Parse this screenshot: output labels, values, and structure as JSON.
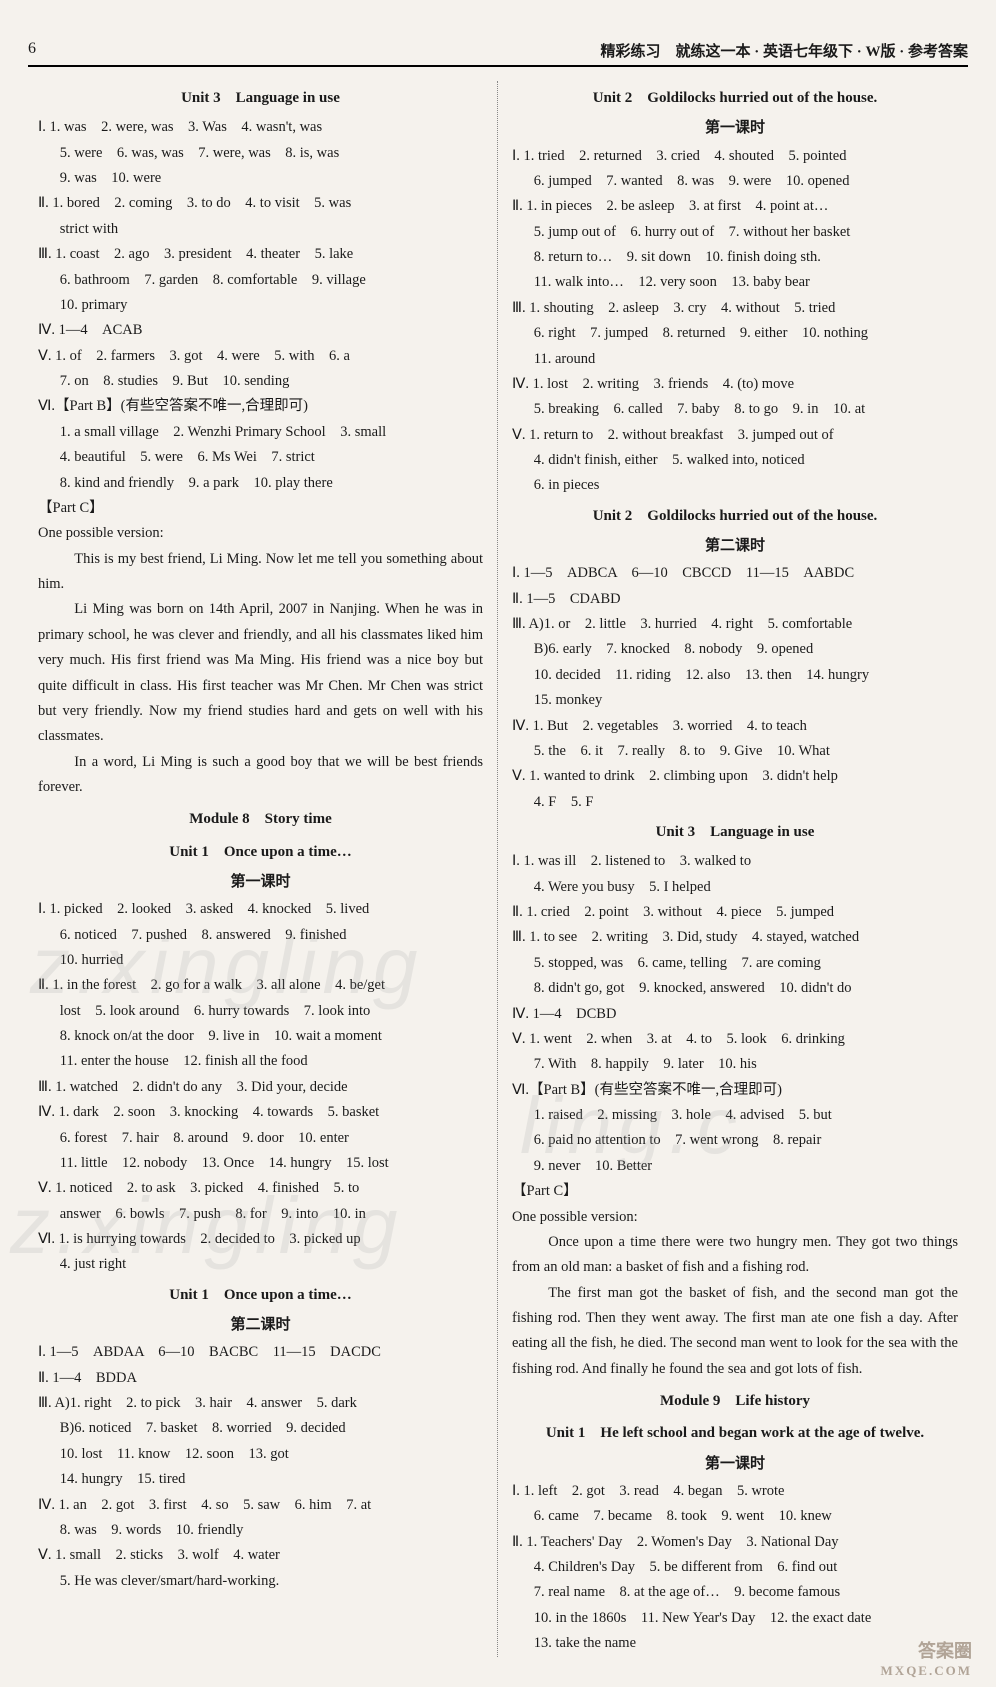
{
  "header": {
    "page_number": "6",
    "book_title": "精彩练习　就练这一本 · 英语七年级下 · W版 · 参考答案"
  },
  "left": {
    "unit3_title": "Unit 3　Language in use",
    "u3_I": "Ⅰ. 1. was　2. were, was　3. Was　4. wasn't, was",
    "u3_I_b": "5. were　6. was, was　7. were, was　8. is, was",
    "u3_I_c": "9. was　10. were",
    "u3_II": "Ⅱ. 1. bored　2. coming　3. to do　4. to visit　5. was",
    "u3_II_b": "strict with",
    "u3_III": "Ⅲ. 1. coast　2. ago　3. president　4. theater　5. lake",
    "u3_III_b": "6. bathroom　7. garden　8. comfortable　9. village",
    "u3_III_c": "10. primary",
    "u3_IV": "Ⅳ. 1—4　ACAB",
    "u3_V": "Ⅴ. 1. of　2. farmers　3. got　4. were　5. with　6. a",
    "u3_V_b": "7. on　8. studies　9. But　10. sending",
    "u3_VI": "Ⅵ.【Part B】(有些空答案不唯一,合理即可)",
    "u3_VI_1": "1. a small village　2. Wenzhi Primary School　3. small",
    "u3_VI_2": "4. beautiful　5. were　6. Ms Wei　7. strict",
    "u3_VI_3": "8. kind and friendly　9. a park　10. play there",
    "partC": "【Part C】",
    "partC_intro": "One possible version:",
    "partC_p1": "This is my best friend, Li Ming. Now let me tell you something about him.",
    "partC_p2": "Li Ming was born on 14th April, 2007 in Nanjing. When he was in primary school, he was clever and friendly, and all his classmates liked him very much. His first friend was Ma Ming. His friend was a nice boy but quite difficult in class. His first teacher was Mr Chen. Mr Chen was strict but very friendly. Now my friend studies hard and gets on well with his classmates.",
    "partC_p3": "In a word, Li Ming is such a good boy that we will be best friends forever.",
    "module8": "Module 8　Story time",
    "m8_unit1": "Unit 1　Once upon a time…",
    "m8_lesson1": "第一课时",
    "m8_I": "Ⅰ. 1. picked　2. looked　3. asked　4. knocked　5. lived",
    "m8_I_b": "6. noticed　7. pushed　8. answered　9. finished",
    "m8_I_c": "10. hurried",
    "m8_II": "Ⅱ. 1. in the forest　2. go for a walk　3. all alone　4. be/get",
    "m8_II_b": "lost　5. look around　6. hurry towards　7. look into",
    "m8_II_c": "8. knock on/at the door　9. live in　10. wait a moment",
    "m8_II_d": "11. enter the house　12. finish all the food",
    "m8_III": "Ⅲ. 1. watched　2. didn't do any　3. Did your, decide",
    "m8_IV": "Ⅳ. 1. dark　2. soon　3. knocking　4. towards　5. basket",
    "m8_IV_b": "6. forest　7. hair　8. around　9. door　10. enter",
    "m8_IV_c": "11. little　12. nobody　13. Once　14. hungry　15. lost",
    "m8_V": "Ⅴ. 1. noticed　2. to ask　3. picked　4. finished　5. to",
    "m8_V_b": "answer　6. bowls　7. push　8. for　9. into　10. in",
    "m8_VI": "Ⅵ. 1. is hurrying towards　2. decided to　3. picked up",
    "m8_VI_b": "4. just right",
    "m8_unit1_2": "Unit 1　Once upon a time…",
    "m8_lesson2": "第二课时",
    "m8l2_I": "Ⅰ. 1—5　ABDAA　6—10　BACBC　11—15　DACDC",
    "m8l2_II": "Ⅱ. 1—4　BDDA",
    "m8l2_III": "Ⅲ. A)1. right　2. to pick　3. hair　4. answer　5. dark",
    "m8l2_III_b": "B)6. noticed　7. basket　8. worried　9. decided",
    "m8l2_III_c": "10. lost　11. know　12. soon　13. got",
    "m8l2_III_d": "14. hungry　15. tired",
    "m8l2_IV": "Ⅳ. 1. an　2. got　3. first　4. so　5. saw　6. him　7. at",
    "m8l2_IV_b": "8. was　9. words　10. friendly",
    "m8l2_V": "Ⅴ. 1. small　2. sticks　3. wolf　4. water",
    "m8l2_V_b": "5. He was clever/smart/hard-working."
  },
  "right": {
    "unit2_title": "Unit 2　Goldilocks hurried out of the house.",
    "u2_lesson1": "第一课时",
    "u2_I": "Ⅰ. 1. tried　2. returned　3. cried　4. shouted　5. pointed",
    "u2_I_b": "6. jumped　7. wanted　8. was　9. were　10. opened",
    "u2_II": "Ⅱ. 1. in pieces　2. be asleep　3. at first　4. point at…",
    "u2_II_b": "5. jump out of　6. hurry out of　7. without her basket",
    "u2_II_c": "8. return to…　9. sit down　10. finish doing sth.",
    "u2_II_d": "11. walk into…　12. very soon　13. baby bear",
    "u2_III": "Ⅲ. 1. shouting　2. asleep　3. cry　4. without　5. tried",
    "u2_III_b": "6. right　7. jumped　8. returned　9. either　10. nothing",
    "u2_III_c": "11. around",
    "u2_IV": "Ⅳ. 1. lost　2. writing　3. friends　4. (to) move",
    "u2_IV_b": "5. breaking　6. called　7. baby　8. to go　9. in　10. at",
    "u2_V": "Ⅴ. 1. return to　2. without breakfast　3. jumped out of",
    "u2_V_b": "4. didn't finish, either　5. walked into, noticed",
    "u2_V_c": "6. in pieces",
    "unit2_title2": "Unit 2　Goldilocks hurried out of the house.",
    "u2_lesson2": "第二课时",
    "u2l2_I": "Ⅰ. 1—5　ADBCA　6—10　CBCCD　11—15　AABDC",
    "u2l2_II": "Ⅱ. 1—5　CDABD",
    "u2l2_III": "Ⅲ. A)1. or　2. little　3. hurried　4. right　5. comfortable",
    "u2l2_III_b": "B)6. early　7. knocked　8. nobody　9. opened",
    "u2l2_III_c": "10. decided　11. riding　12. also　13. then　14. hungry",
    "u2l2_III_d": "15. monkey",
    "u2l2_IV": "Ⅳ. 1. But　2. vegetables　3. worried　4. to teach",
    "u2l2_IV_b": "5. the　6. it　7. really　8. to　9. Give　10. What",
    "u2l2_V": "Ⅴ. 1. wanted to drink　2. climbing upon　3. didn't help",
    "u2l2_V_b": "4. F　5. F",
    "unit3_title": "Unit 3　Language in use",
    "ru3_I": "Ⅰ. 1. was ill　2. listened to　3. walked to",
    "ru3_I_b": "4. Were you busy　5. I helped",
    "ru3_II": "Ⅱ. 1. cried　2. point　3. without　4. piece　5. jumped",
    "ru3_III": "Ⅲ. 1. to see　2. writing　3. Did, study　4. stayed, watched",
    "ru3_III_b": "5. stopped, was　6. came, telling　7. are coming",
    "ru3_III_c": "8. didn't go, got　9. knocked, answered　10. didn't do",
    "ru3_IV": "Ⅳ. 1—4　DCBD",
    "ru3_V": "Ⅴ. 1. went　2. when　3. at　4. to　5. look　6. drinking",
    "ru3_V_b": "7. With　8. happily　9. later　10. his",
    "ru3_VI": "Ⅵ.【Part B】(有些空答案不唯一,合理即可)",
    "ru3_VI_1": "1. raised　2. missing　3. hole　4. advised　5. but",
    "ru3_VI_2": "6. paid no attention to　7. went wrong　8. repair",
    "ru3_VI_3": "9. never　10. Better",
    "partC": "【Part C】",
    "partC_intro": "One possible version:",
    "partC_p1": "Once upon a time there were two hungry men. They got two things from an old man: a basket of fish and a fishing rod.",
    "partC_p2": "The first man got the basket of fish, and the second man got the fishing rod. Then they went away. The first man ate one fish a day. After eating all the fish, he died. The second man went to look for the sea with the fishing rod. And finally he found the sea and got lots of fish.",
    "module9": "Module 9　Life history",
    "m9_unit1": "Unit 1　He left school and began work at the age of twelve.",
    "m9_lesson1": "第一课时",
    "m9_I": "Ⅰ. 1. left　2. got　3. read　4. began　5. wrote",
    "m9_I_b": "6. came　7. became　8. took　9. went　10. knew",
    "m9_II": "Ⅱ. 1. Teachers' Day　2. Women's Day　3. National Day",
    "m9_II_b": "4. Children's Day　5. be different from　6. find out",
    "m9_II_c": "7. real name　8. at the age of…　9. become famous",
    "m9_II_d": "10. in the 1860s　11. New Year's Day　12. the exact date",
    "m9_II_e": "13. take the name"
  },
  "watermarks": {
    "wm1": "z.xingling",
    "wm2": "z.xingling",
    "wm3": "ling.c"
  },
  "footer": {
    "brand": "答案圈",
    "url": "MXQE.COM"
  }
}
